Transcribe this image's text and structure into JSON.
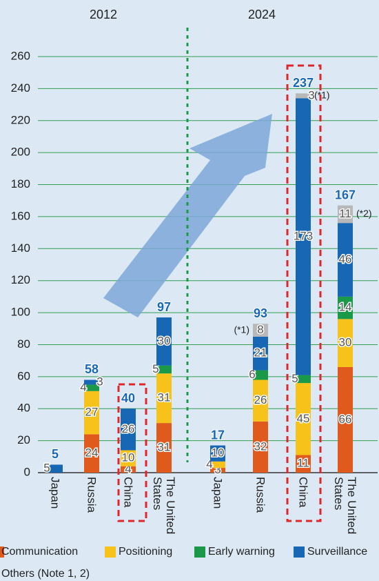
{
  "chart_data": {
    "type": "bar",
    "stacked": true,
    "groups": [
      "2012",
      "2024"
    ],
    "categories": [
      [
        "Japan",
        "Russia",
        "China",
        "The United States"
      ],
      [
        "Japan",
        "Russia",
        "China",
        "The United States"
      ]
    ],
    "series": [
      {
        "name": "Communication",
        "color": "#e05a1e",
        "values": [
          [
            null,
            24,
            4,
            31
          ],
          [
            3,
            32,
            11,
            66
          ]
        ]
      },
      {
        "name": "Positioning",
        "color": "#f7c21a",
        "values": [
          [
            null,
            27,
            10,
            31
          ],
          [
            4,
            26,
            45,
            30
          ]
        ]
      },
      {
        "name": "Early warning",
        "color": "#1a9a48",
        "values": [
          [
            null,
            4,
            null,
            5
          ],
          [
            null,
            6,
            5,
            14
          ]
        ]
      },
      {
        "name": "Surveillance",
        "color": "#1767b4",
        "values": [
          [
            5,
            3,
            26,
            30
          ],
          [
            10,
            21,
            173,
            46
          ]
        ]
      },
      {
        "name": "Others (Note 1, 2)",
        "color": "#b8b8b8",
        "values": [
          [
            null,
            null,
            null,
            null
          ],
          [
            null,
            8,
            3,
            11
          ]
        ],
        "notes": [
          [
            null,
            null,
            null,
            null
          ],
          [
            null,
            "(*1)",
            "(*1)",
            "(*2)"
          ]
        ]
      }
    ],
    "totals": [
      [
        5,
        58,
        40,
        97
      ],
      [
        17,
        93,
        237,
        167
      ]
    ],
    "ylim": [
      0,
      260
    ],
    "yticks": [
      0,
      20,
      40,
      60,
      80,
      100,
      120,
      140,
      160,
      180,
      200,
      220,
      240,
      260
    ],
    "grid": true
  }
}
